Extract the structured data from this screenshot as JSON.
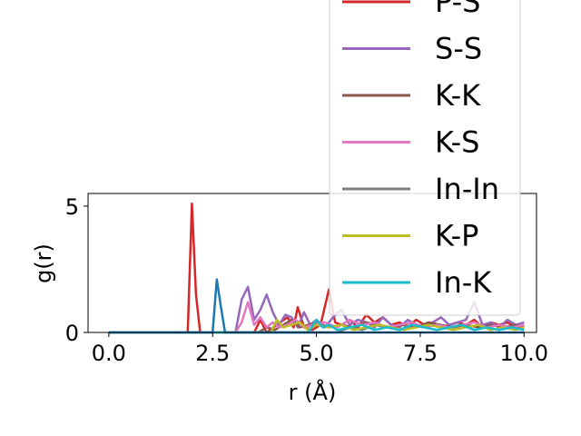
{
  "chart_data": {
    "type": "line",
    "title": "",
    "xlabel": "r (Å)",
    "ylabel": "g(r)",
    "xlim": [
      -0.5,
      10.3
    ],
    "ylim": [
      0,
      5.5
    ],
    "xticks": [
      0.0,
      2.5,
      5.0,
      7.5,
      10.0
    ],
    "xtick_labels": [
      "0.0",
      "2.5",
      "5.0",
      "7.5",
      "10.0"
    ],
    "yticks": [
      0,
      5
    ],
    "ytick_labels": [
      "0",
      "5"
    ],
    "grid": false,
    "legend_position": "upper-right",
    "series": [
      {
        "name": "P-S",
        "color": "#d62728",
        "x": [
          0.0,
          1.9,
          2.0,
          2.1,
          2.2,
          3.5,
          3.65,
          3.8,
          4.3,
          4.45,
          4.55,
          4.7,
          4.9,
          5.1,
          5.3,
          5.45,
          5.6,
          5.8,
          6.0,
          6.2,
          6.4,
          6.6,
          6.8,
          7.0,
          7.2,
          7.4,
          7.6,
          7.8,
          8.0,
          8.2,
          8.4,
          8.6,
          8.8,
          9.0,
          9.2,
          9.4,
          9.6,
          9.8,
          10.0
        ],
        "y": [
          0,
          0,
          5.1,
          1.5,
          0,
          0,
          0.5,
          0,
          0.6,
          0.2,
          1.0,
          0.2,
          0.1,
          0.3,
          1.7,
          0.4,
          0.3,
          0.5,
          0.2,
          0.7,
          0.4,
          0.6,
          0.3,
          0.4,
          0.2,
          0.5,
          0.3,
          0.4,
          0.2,
          0.3,
          0.4,
          0.3,
          0.5,
          0.2,
          0.4,
          0.3,
          0.4,
          0.2,
          0.3
        ]
      },
      {
        "name": "S-S",
        "color": "#9467bd",
        "x": [
          0.0,
          3.05,
          3.2,
          3.35,
          3.5,
          3.65,
          3.8,
          3.95,
          4.1,
          4.25,
          4.4,
          4.55,
          4.7,
          4.85,
          5.0,
          5.2,
          5.4,
          5.6,
          5.8,
          6.0,
          6.2,
          6.4,
          6.6,
          6.8,
          7.0,
          7.2,
          7.4,
          7.6,
          7.8,
          8.0,
          8.2,
          8.4,
          8.6,
          8.8,
          9.0,
          9.2,
          9.4,
          9.6,
          9.8,
          10.0
        ],
        "y": [
          0,
          0,
          1.3,
          1.8,
          0.5,
          0.9,
          1.5,
          0.8,
          0.3,
          0.7,
          0.6,
          0.2,
          0.8,
          0.3,
          0.5,
          0.2,
          0.6,
          0.9,
          0.3,
          0.5,
          0.4,
          0.2,
          0.6,
          0.3,
          0.2,
          0.5,
          0.3,
          0.2,
          0.4,
          0.6,
          0.3,
          0.4,
          0.5,
          1.2,
          0.3,
          0.4,
          0.2,
          0.5,
          0.3,
          0.4
        ]
      },
      {
        "name": "K-K",
        "color": "#8c564b",
        "x": [
          0.0,
          3.6,
          3.8,
          4.0,
          4.2,
          4.4,
          4.6,
          4.8,
          5.0,
          5.3,
          5.6,
          5.9,
          6.2,
          6.5,
          6.8,
          7.1,
          7.4,
          7.7,
          8.0,
          8.3,
          8.6,
          8.9,
          9.2,
          9.5,
          9.8,
          10.0
        ],
        "y": [
          0,
          0,
          0.2,
          0.1,
          0.3,
          0.5,
          0.2,
          0.3,
          0.4,
          0.2,
          0.3,
          0.2,
          0.4,
          0.3,
          0.2,
          0.3,
          0.2,
          0.4,
          0.3,
          0.2,
          0.3,
          0.2,
          0.3,
          0.2,
          0.3,
          0.2
        ]
      },
      {
        "name": "K-S",
        "color": "#e377c2",
        "x": [
          0.0,
          3.05,
          3.2,
          3.35,
          3.5,
          3.65,
          3.8,
          3.95,
          4.1,
          4.3,
          4.5,
          4.7,
          4.9,
          5.2,
          5.5,
          5.8,
          6.1,
          6.4,
          6.7,
          7.0,
          7.3,
          7.6,
          7.9,
          8.2,
          8.5,
          8.8,
          9.1,
          9.4,
          9.7,
          10.0
        ],
        "y": [
          0,
          0,
          0.4,
          1.2,
          0.3,
          0.6,
          0.2,
          0.4,
          0.2,
          0.3,
          0.5,
          0.2,
          0.3,
          0.4,
          0.2,
          0.5,
          0.3,
          0.4,
          0.2,
          0.3,
          0.4,
          0.2,
          0.3,
          0.2,
          0.3,
          0.4,
          0.2,
          0.3,
          0.2,
          0.3
        ]
      },
      {
        "name": "In-In",
        "color": "#7f7f7f",
        "x": [
          0.0,
          5.5,
          5.8,
          6.1,
          6.4,
          6.7,
          7.0,
          7.3,
          7.6,
          7.9,
          8.2,
          8.5,
          8.8,
          9.1,
          9.4,
          9.7,
          10.0
        ],
        "y": [
          0,
          0,
          0.2,
          0.1,
          0.3,
          0.2,
          0.1,
          0.3,
          0.2,
          0.1,
          0.2,
          0.3,
          0.1,
          0.2,
          0.1,
          0.2,
          0.1
        ]
      },
      {
        "name": "K-P",
        "color": "#bcbd22",
        "x": [
          0.0,
          3.9,
          4.05,
          4.2,
          4.4,
          4.6,
          4.8,
          5.0,
          5.3,
          5.6,
          5.9,
          6.2,
          6.5,
          6.8,
          7.1,
          7.4,
          7.7,
          8.0,
          8.3,
          8.6,
          8.9,
          9.2,
          9.5,
          9.8,
          10.0
        ],
        "y": [
          0,
          0,
          0.5,
          0.2,
          0.3,
          0.4,
          0.1,
          0.3,
          0.2,
          0.3,
          0.1,
          0.2,
          0.3,
          0.2,
          0.1,
          0.2,
          0.3,
          0.2,
          0.1,
          0.2,
          0.3,
          0.1,
          0.2,
          0.1,
          0.2
        ]
      },
      {
        "name": "In-K",
        "color": "#17becf",
        "x": [
          0.0,
          4.8,
          5.0,
          5.15,
          5.3,
          5.5,
          5.8,
          6.1,
          6.4,
          6.7,
          7.0,
          7.3,
          7.6,
          7.9,
          8.2,
          8.5,
          8.8,
          9.1,
          9.4,
          9.7,
          10.0
        ],
        "y": [
          0,
          0,
          0.5,
          0.2,
          0.3,
          0.1,
          0.2,
          0.3,
          0.1,
          0.2,
          0.1,
          0.3,
          0.2,
          0.1,
          0.2,
          0.3,
          0.1,
          0.2,
          0.1,
          0.2,
          0.1
        ]
      },
      {
        "name": "",
        "color": "#1f77b4",
        "x": [
          0.0,
          2.5,
          2.6,
          2.7,
          2.8,
          10.0
        ],
        "y": [
          0,
          0,
          2.1,
          1.0,
          0,
          0
        ]
      }
    ],
    "legend_entries": [
      "P-S",
      "S-S",
      "K-K",
      "K-S",
      "In-In",
      "K-P",
      "In-K"
    ]
  },
  "colors": {
    "P-S": "#d62728",
    "S-S": "#9467bd",
    "K-K": "#8c564b",
    "K-S": "#e377c2",
    "In-In": "#7f7f7f",
    "K-P": "#bcbd22",
    "In-K": "#17becf"
  }
}
